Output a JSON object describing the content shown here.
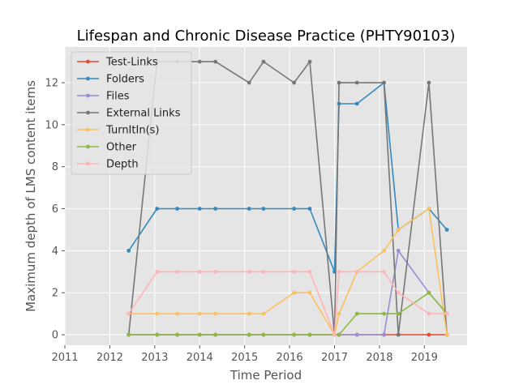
{
  "chart_data": {
    "type": "line",
    "title": "Lifespan and Chronic Disease Practice (PHTY90103)",
    "xlabel": "Time Period",
    "ylabel": "Maximum depth of LMS content items",
    "xlim": [
      2011.0,
      2019.95
    ],
    "ylim": [
      -0.5,
      13.7
    ],
    "xticks": [
      2011,
      2012,
      2013,
      2014,
      2015,
      2016,
      2017,
      2018,
      2019
    ],
    "yticks": [
      0,
      2,
      4,
      6,
      8,
      10,
      12
    ],
    "grid": true,
    "legend_position": "upper-left",
    "x": [
      2012.42,
      2013.05,
      2013.5,
      2014.0,
      2014.35,
      2015.1,
      2015.42,
      2016.1,
      2016.45,
      2017.0,
      2017.1,
      2017.5,
      2018.1,
      2018.42,
      2019.1,
      2019.5
    ],
    "series": [
      {
        "name": "Test-Links",
        "color": "#E24A33",
        "values": [
          0,
          0,
          0,
          0,
          0,
          0,
          0,
          0,
          0,
          0,
          0,
          0,
          0,
          0,
          0,
          0
        ]
      },
      {
        "name": "Folders",
        "color": "#348ABD",
        "values": [
          4,
          6,
          6,
          6,
          6,
          6,
          6,
          6,
          6,
          3,
          11,
          11,
          12,
          5,
          6,
          5
        ]
      },
      {
        "name": "Files",
        "color": "#988ED5",
        "values": [
          0,
          0,
          0,
          0,
          0,
          0,
          0,
          0,
          0,
          0,
          0,
          0,
          0,
          4,
          2,
          1
        ]
      },
      {
        "name": "External Links",
        "color": "#777777",
        "values": [
          0,
          13,
          13,
          13,
          13,
          12,
          13,
          12,
          13,
          0,
          12,
          12,
          12,
          0,
          12,
          0
        ]
      },
      {
        "name": "TurnItIn(s)",
        "color": "#FBC15E",
        "values": [
          1,
          1,
          1,
          1,
          1,
          1,
          1,
          2,
          2,
          0,
          1,
          3,
          4,
          5,
          6,
          0
        ]
      },
      {
        "name": "Other",
        "color": "#8EBA42",
        "values": [
          0,
          0,
          0,
          0,
          0,
          0,
          0,
          0,
          0,
          0,
          0,
          1,
          1,
          1,
          2,
          1
        ]
      },
      {
        "name": "Depth",
        "color": "#FFB5B8",
        "values": [
          1,
          3,
          3,
          3,
          3,
          3,
          3,
          3,
          3,
          0,
          3,
          3,
          3,
          2,
          1,
          1
        ]
      }
    ]
  }
}
